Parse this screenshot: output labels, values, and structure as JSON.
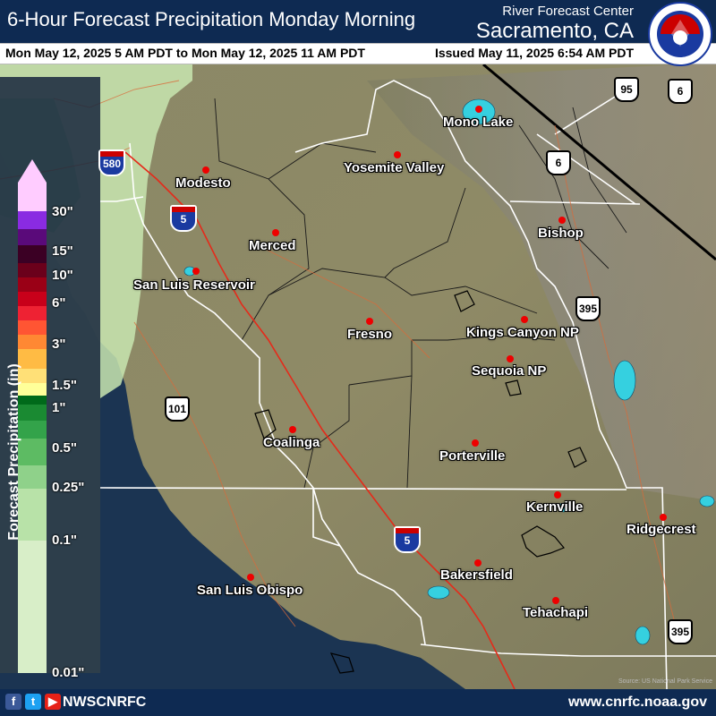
{
  "header": {
    "title": "6-Hour Forecast Precipitation Monday Morning",
    "rfc": "River Forecast Center",
    "city": "Sacramento, CA",
    "valid_range": "Mon May 12, 2025 5 AM PDT to Mon May 12, 2025 11 AM PDT",
    "issued": "Issued May 11, 2025 6:54 AM PDT",
    "logo_text": "NATIONAL WEATHER SERVICE"
  },
  "legend": {
    "title": "Forecast Precipitation (in)",
    "labels": [
      "30\"",
      "15\"",
      "10\"",
      "6\"",
      "3\"",
      "1.5\"",
      "1\"",
      "0.5\"",
      "0.25\"",
      "0.1\"",
      "0.01\""
    ],
    "colors": [
      "#ffccff",
      "#8a2be2",
      "#5a0a7a",
      "#3b0024",
      "#6b001b",
      "#9a0016",
      "#c8001a",
      "#ee2233",
      "#ff5533",
      "#ff8833",
      "#ffbb44",
      "#ffe077",
      "#ffff99",
      "#006a1a",
      "#1a8a32",
      "#33a34a",
      "#5dbb63",
      "#8fd18a",
      "#b8e2a8",
      "#d8eec8"
    ]
  },
  "cities": [
    {
      "name": "Mono Lake"
    },
    {
      "name": "Yosemite Valley"
    },
    {
      "name": "Modesto"
    },
    {
      "name": "Bishop"
    },
    {
      "name": "Merced"
    },
    {
      "name": "San Luis Reservoir"
    },
    {
      "name": "Fresno"
    },
    {
      "name": "Kings Canyon NP"
    },
    {
      "name": "Sequoia NP"
    },
    {
      "name": "Coalinga"
    },
    {
      "name": "Porterville"
    },
    {
      "name": "Kernville"
    },
    {
      "name": "Ridgecrest"
    },
    {
      "name": "Bakersfield"
    },
    {
      "name": "San Luis Obispo"
    },
    {
      "name": "Tehachapi"
    }
  ],
  "routes": {
    "us95": "95",
    "ca6a": "6",
    "us6": "6",
    "us395a": "395",
    "us395b": "395",
    "us101": "101",
    "i580": "580",
    "i5a": "5",
    "i5b": "5"
  },
  "footer": {
    "handle": "NWSCNRFC",
    "url": "www.cnrfc.noaa.gov",
    "credit": "Source: US National Park Service"
  }
}
